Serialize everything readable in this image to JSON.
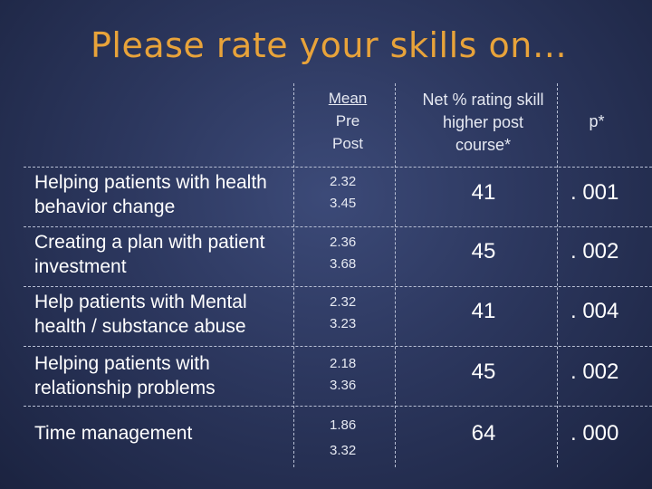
{
  "title": "Please rate your skills on…",
  "headers": {
    "mean": [
      "Mean",
      "Pre",
      "Post"
    ],
    "net": [
      "Net % rating skill",
      "higher post",
      "course*"
    ],
    "p": "p*"
  },
  "rows": [
    {
      "label": "Helping patients with health behavior change",
      "pre": "2.32",
      "post": "3.45",
      "net": "41",
      "p": ". 001"
    },
    {
      "label": "Creating a plan with patient investment",
      "pre": "2.36",
      "post": "3.68",
      "net": "45",
      "p": ". 002"
    },
    {
      "label": "Help patients with Mental health / substance abuse",
      "pre": "2.32",
      "post": "3.23",
      "net": "41",
      "p": ". 004"
    },
    {
      "label": "Helping patients with relationship problems",
      "pre": "2.18",
      "post": "3.36",
      "net": "45",
      "p": ". 002"
    },
    {
      "label": "Time management",
      "pre": "1.86",
      "post": "3.32",
      "net": "64",
      "p": ". 000"
    }
  ]
}
